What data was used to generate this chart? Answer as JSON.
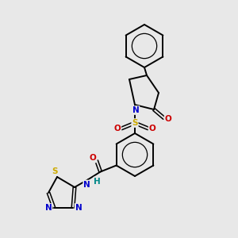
{
  "background_color": "#e8e8e8",
  "bond_color": "#000000",
  "colors": {
    "N": "#0000cc",
    "O": "#cc0000",
    "S": "#ccaa00",
    "H": "#008888"
  },
  "lw": 1.4,
  "lw_dbl": 1.1,
  "figsize": [
    3.0,
    3.0
  ],
  "dpi": 100
}
